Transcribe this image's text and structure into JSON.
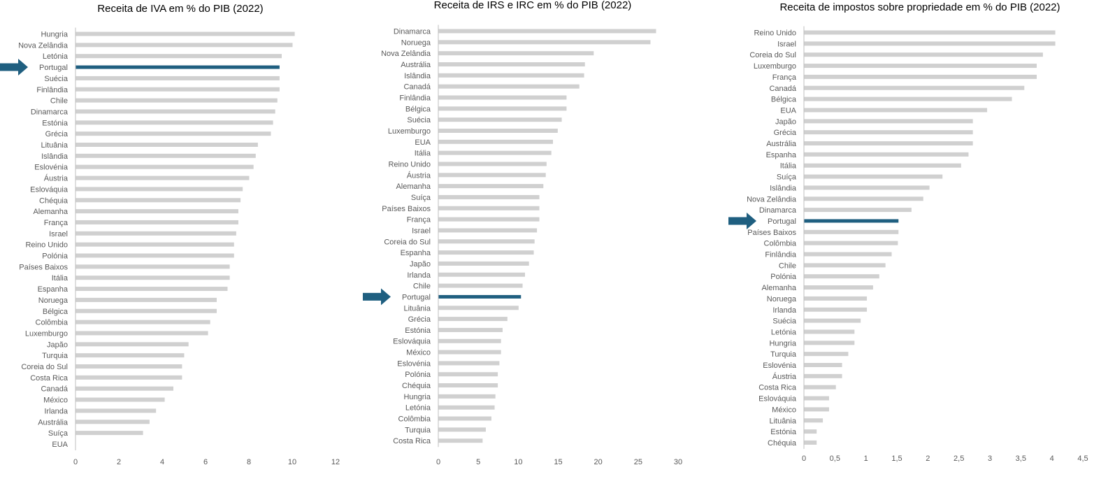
{
  "colors": {
    "bar": "#d0d0d0",
    "highlight": "#1f5f80",
    "axis": "#bfbfbf",
    "text": "#595959"
  },
  "chart_data": [
    {
      "type": "bar",
      "orientation": "horizontal",
      "title": "Receita de IVA em % do PIB (2022)",
      "xlim": [
        0,
        12
      ],
      "ticks": [
        0,
        2,
        4,
        6,
        8,
        10,
        12
      ],
      "tick_labels": [
        "0",
        "2",
        "4",
        "6",
        "8",
        "10",
        "12"
      ],
      "highlight": "Portugal",
      "categories": [
        "Hungria",
        "Nova Zelândia",
        "Letónia",
        "Portugal",
        "Suécia",
        "Finlândia",
        "Chile",
        "Dinamarca",
        "Estónia",
        "Grécia",
        "Lituânia",
        "Islândia",
        "Eslovénia",
        "Áustria",
        "Eslováquia",
        "Chéquia",
        "Alemanha",
        "França",
        "Israel",
        "Reino Unido",
        "Polónia",
        "Países Baixos",
        "Itália",
        "Espanha",
        "Noruega",
        "Bélgica",
        "Colômbia",
        "Luxemburgo",
        "Japão",
        "Turquia",
        "Coreia do Sul",
        "Costa Rica",
        "Canadá",
        "México",
        "Irlanda",
        "Austrália",
        "Suíça",
        "EUA"
      ],
      "values": [
        10.1,
        10.0,
        9.5,
        9.4,
        9.4,
        9.4,
        9.3,
        9.2,
        9.1,
        9.0,
        8.4,
        8.3,
        8.2,
        8.0,
        7.7,
        7.6,
        7.5,
        7.5,
        7.4,
        7.3,
        7.3,
        7.1,
        7.1,
        7.0,
        6.5,
        6.5,
        6.2,
        6.1,
        5.2,
        5.0,
        4.9,
        4.9,
        4.5,
        4.1,
        3.7,
        3.4,
        3.1,
        0.0
      ]
    },
    {
      "type": "bar",
      "orientation": "horizontal",
      "title": "Receita de IRS e IRC em % do PIB (2022)",
      "xlim": [
        0,
        30
      ],
      "ticks": [
        0,
        5,
        10,
        15,
        20,
        25,
        30
      ],
      "tick_labels": [
        "0",
        "5",
        "10",
        "15",
        "20",
        "25",
        "30"
      ],
      "highlight": "Portugal",
      "categories": [
        "Dinamarca",
        "Noruega",
        "Nova Zelândia",
        "Austrália",
        "Islândia",
        "Canadá",
        "Finlândia",
        "Bélgica",
        "Suécia",
        "Luxemburgo",
        "EUA",
        "Itália",
        "Reino Unido",
        "Áustria",
        "Alemanha",
        "Suíça",
        "Países Baixos",
        "França",
        "Israel",
        "Coreia do Sul",
        "Espanha",
        "Japão",
        "Irlanda",
        "Chile",
        "Portugal",
        "Lituânia",
        "Grécia",
        "Estónia",
        "Eslováquia",
        "México",
        "Eslovénia",
        "Polónia",
        "Chéquia",
        "Hungria",
        "Letónia",
        "Colômbia",
        "Turquia",
        "Costa Rica"
      ],
      "values": [
        27.2,
        26.5,
        19.4,
        18.3,
        18.2,
        17.6,
        16.0,
        16.0,
        15.4,
        14.9,
        14.3,
        14.1,
        13.5,
        13.4,
        13.1,
        12.6,
        12.6,
        12.6,
        12.3,
        12.0,
        11.9,
        11.3,
        10.8,
        10.5,
        10.3,
        10.0,
        8.6,
        8.0,
        7.8,
        7.8,
        7.6,
        7.4,
        7.4,
        7.1,
        7.0,
        6.6,
        5.9,
        5.5
      ]
    },
    {
      "type": "bar",
      "orientation": "horizontal",
      "title": "Receita de impostos sobre propriedade em % do PIB (2022)",
      "xlim": [
        0,
        4.5
      ],
      "ticks": [
        0,
        0.5,
        1,
        1.5,
        2,
        2.5,
        3,
        3.5,
        4,
        4.5
      ],
      "tick_labels": [
        "0",
        "0,5",
        "1",
        "1,5",
        "2",
        "2,5",
        "3",
        "3,5",
        "4",
        "4,5"
      ],
      "highlight": "Portugal",
      "categories": [
        "Reino Unido",
        "Israel",
        "Coreia do Sul",
        "Luxemburgo",
        "França",
        "Canadá",
        "Bélgica",
        "EUA",
        "Japão",
        "Grécia",
        "Austrália",
        "Espanha",
        "Itália",
        "Suíça",
        "Islândia",
        "Nova Zelândia",
        "Dinamarca",
        "Portugal",
        "Países Baixos",
        "Colômbia",
        "Finlândia",
        "Chile",
        "Polónia",
        "Alemanha",
        "Noruega",
        "Irlanda",
        "Suécia",
        "Letónia",
        "Hungria",
        "Turquia",
        "Eslovénia",
        "Áustria",
        "Costa Rica",
        "Eslováquia",
        "México",
        "Lituânia",
        "Estónia",
        "Chéquia"
      ],
      "values": [
        4.05,
        4.05,
        3.85,
        3.75,
        3.75,
        3.55,
        3.35,
        2.95,
        2.72,
        2.72,
        2.72,
        2.65,
        2.53,
        2.23,
        2.02,
        1.92,
        1.73,
        1.52,
        1.52,
        1.51,
        1.41,
        1.31,
        1.21,
        1.11,
        1.01,
        1.01,
        0.91,
        0.81,
        0.81,
        0.71,
        0.61,
        0.61,
        0.51,
        0.4,
        0.4,
        0.3,
        0.2,
        0.2
      ]
    }
  ]
}
